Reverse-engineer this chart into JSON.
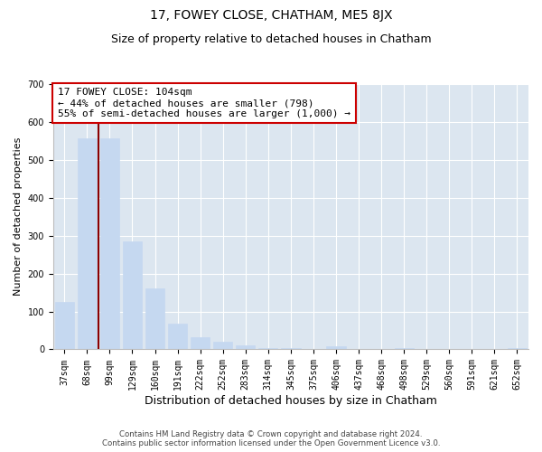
{
  "title": "17, FOWEY CLOSE, CHATHAM, ME5 8JX",
  "subtitle": "Size of property relative to detached houses in Chatham",
  "xlabel": "Distribution of detached houses by size in Chatham",
  "ylabel": "Number of detached properties",
  "categories": [
    "37sqm",
    "68sqm",
    "99sqm",
    "129sqm",
    "160sqm",
    "191sqm",
    "222sqm",
    "252sqm",
    "283sqm",
    "314sqm",
    "345sqm",
    "375sqm",
    "406sqm",
    "437sqm",
    "468sqm",
    "498sqm",
    "529sqm",
    "560sqm",
    "591sqm",
    "621sqm",
    "652sqm"
  ],
  "values": [
    124,
    558,
    558,
    285,
    160,
    68,
    33,
    20,
    10,
    4,
    4,
    0,
    8,
    0,
    0,
    4,
    0,
    0,
    0,
    0,
    4
  ],
  "bar_color": "#c5d8f0",
  "bar_edgecolor": "#c5d8f0",
  "vline_color": "#8b0000",
  "annotation_text": "17 FOWEY CLOSE: 104sqm\n← 44% of detached houses are smaller (798)\n55% of semi-detached houses are larger (1,000) →",
  "annotation_box_color": "#ffffff",
  "annotation_box_edgecolor": "#cc0000",
  "ylim": [
    0,
    700
  ],
  "yticks": [
    0,
    100,
    200,
    300,
    400,
    500,
    600,
    700
  ],
  "background_color": "#dce6f0",
  "footer_line1": "Contains HM Land Registry data © Crown copyright and database right 2024.",
  "footer_line2": "Contains public sector information licensed under the Open Government Licence v3.0.",
  "title_fontsize": 10,
  "subtitle_fontsize": 9,
  "xlabel_fontsize": 9,
  "ylabel_fontsize": 8,
  "tick_fontsize": 7,
  "annotation_fontsize": 8
}
